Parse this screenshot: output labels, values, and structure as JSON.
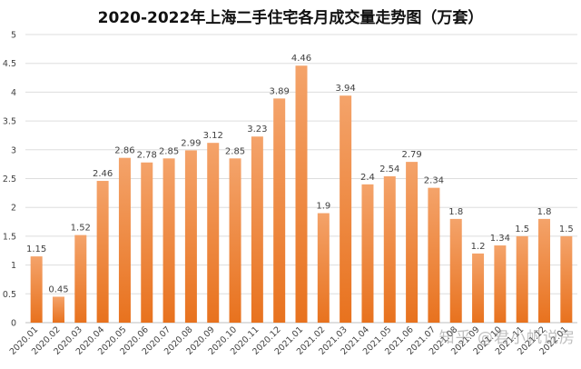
{
  "chart_data": {
    "type": "bar",
    "title": "2020-2022年上海二手住宅各月成交量走势图（万套）",
    "xlabel": "",
    "ylabel": "",
    "ylim": [
      0,
      5
    ],
    "yticks": [
      "0",
      "0.5",
      "1",
      "1.5",
      "2",
      "2.5",
      "3",
      "3.5",
      "4",
      "4.5",
      "5"
    ],
    "grid": true,
    "legend": "none",
    "categories": [
      "2020.01",
      "2020.02",
      "2020.03",
      "2020.04",
      "2020.05",
      "2020.06",
      "2020.07",
      "2020.08",
      "2020.09",
      "2020.10",
      "2020.11",
      "2020.12",
      "2021.01",
      "2021.02",
      "2021.03",
      "2021.04",
      "2021.05",
      "2021.06",
      "2021.07",
      "2021.08",
      "2021.09",
      "2021.10",
      "2021.11",
      "2021.12",
      "2022.01"
    ],
    "values": [
      1.15,
      0.45,
      1.52,
      2.46,
      2.86,
      2.78,
      2.85,
      2.99,
      3.12,
      2.85,
      3.23,
      3.89,
      4.46,
      1.9,
      3.94,
      2.4,
      2.54,
      2.79,
      2.34,
      1.8,
      1.2,
      1.34,
      1.5,
      1.8,
      1.5
    ],
    "data_labels": [
      "1.15",
      "0.45",
      "1.52",
      "2.46",
      "2.86",
      "2.78",
      "2.85",
      "2.99",
      "3.12",
      "2.85",
      "3.23",
      "3.89",
      "4.46",
      "1.9",
      "3.94",
      "2.4",
      "2.54",
      "2.79",
      "2.34",
      "1.8",
      "1.2",
      "1.34",
      "1.5",
      "1.8",
      "1.5"
    ],
    "colors": {
      "bar_top": "#F4A36A",
      "bar_bottom": "#E8721E",
      "grid": "#DDDDDD",
      "axis": "#BFBFBF",
      "text": "#404040"
    }
  },
  "watermark": "知乎 @君小帆说房"
}
